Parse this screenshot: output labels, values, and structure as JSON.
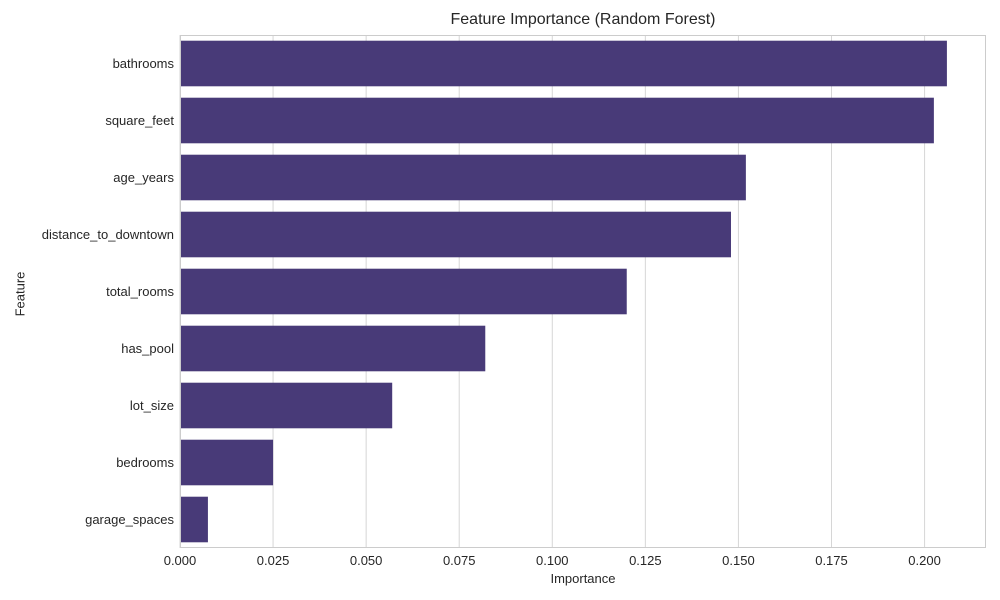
{
  "chart_data": {
    "type": "bar",
    "orientation": "horizontal",
    "title": "Feature Importance (Random Forest)",
    "xlabel": "Importance",
    "ylabel": "Feature",
    "categories": [
      "bathrooms",
      "square_feet",
      "age_years",
      "distance_to_downtown",
      "total_rooms",
      "has_pool",
      "lot_size",
      "bedrooms",
      "garage_spaces"
    ],
    "values": [
      0.206,
      0.2025,
      0.152,
      0.148,
      0.12,
      0.082,
      0.057,
      0.025,
      0.0075
    ],
    "xlim": [
      0,
      0.2165
    ],
    "xticks": [
      "0.000",
      "0.025",
      "0.050",
      "0.075",
      "0.100",
      "0.125",
      "0.150",
      "0.175",
      "0.200"
    ],
    "grid": true,
    "bar_color": "#483a78"
  }
}
